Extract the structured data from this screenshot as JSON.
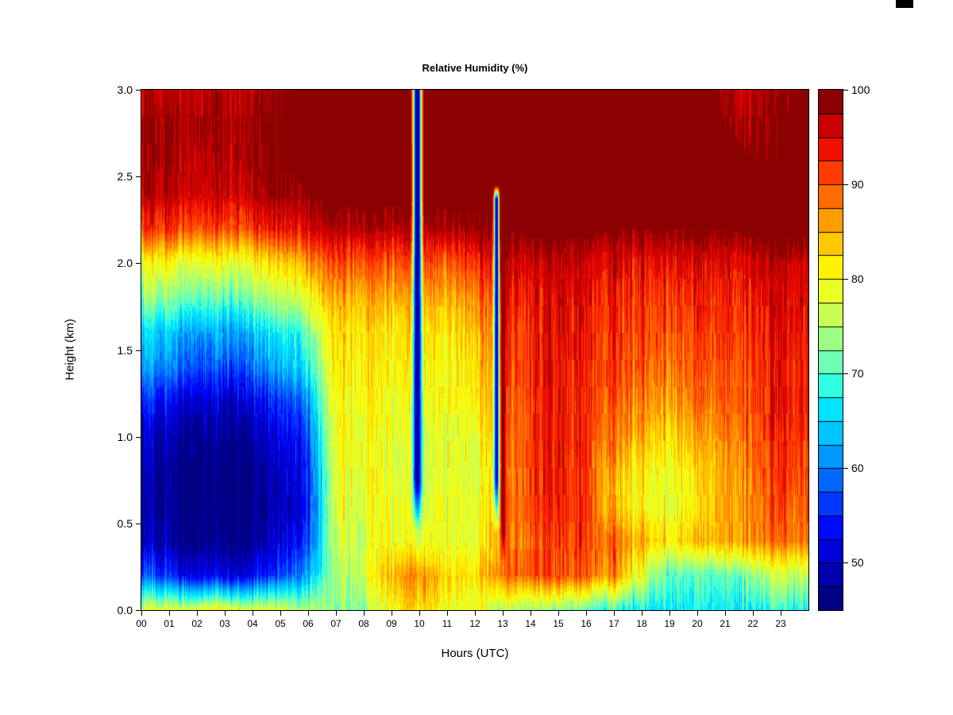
{
  "page": {
    "background": "#FFFFFF"
  },
  "decorations": {
    "corner_mark_color": "#000000"
  },
  "chart_data": {
    "type": "heatmap",
    "title": "Relative Humidity (%)",
    "xlabel": "Hours (UTC)",
    "ylabel": "Height (km)",
    "x_range": [
      0,
      24
    ],
    "y_range": [
      0,
      3
    ],
    "grid_on": false,
    "x_ticks": [
      "00",
      "01",
      "02",
      "03",
      "04",
      "05",
      "06",
      "07",
      "08",
      "09",
      "10",
      "11",
      "12",
      "13",
      "14",
      "15",
      "16",
      "17",
      "18",
      "19",
      "20",
      "21",
      "22",
      "23"
    ],
    "y_ticks": [
      "0.0",
      "0.5",
      "1.0",
      "1.5",
      "2.0",
      "2.5",
      "3.0"
    ],
    "colorbar": {
      "position": "right",
      "range": [
        45,
        100
      ],
      "ticks": [
        50,
        60,
        70,
        80,
        90,
        100
      ],
      "colors": [
        "#000082",
        "#0000AE",
        "#0000DA",
        "#0008FF",
        "#0038FF",
        "#0068FF",
        "#0098FF",
        "#00C4FF",
        "#00E4FF",
        "#30FFE4",
        "#6EFFB4",
        "#9CFF84",
        "#C8FF54",
        "#ECFF24",
        "#FFF400",
        "#FFC800",
        "#FF9C00",
        "#FF6C00",
        "#FF3C00",
        "#F01000",
        "#C80000",
        "#8B0000"
      ]
    },
    "grid": {
      "hours": [
        0,
        1,
        2,
        3,
        4,
        5,
        6,
        7,
        8,
        9,
        10,
        11,
        12,
        13,
        14,
        15,
        16,
        17,
        18,
        19,
        20,
        21,
        22,
        23,
        24
      ],
      "heights": [
        0,
        0.2,
        0.4,
        0.6,
        0.8,
        1,
        1.2,
        1.4,
        1.6,
        1.8,
        2,
        2.2,
        2.4,
        2.6,
        2.8,
        3
      ],
      "values": [
        [
          78,
          78,
          79,
          80,
          78,
          77,
          75,
          72,
          74,
          80,
          82,
          80,
          78,
          76,
          74,
          73,
          71,
          69,
          67,
          66,
          66,
          67,
          68,
          68,
          68
        ],
        [
          58,
          55,
          53,
          52,
          53,
          56,
          62,
          74,
          78,
          85,
          86,
          84,
          82,
          88,
          90,
          91,
          90,
          87,
          78,
          70,
          69,
          71,
          74,
          76,
          76
        ],
        [
          50,
          48,
          47,
          46,
          47,
          50,
          56,
          76,
          78,
          80,
          77,
          80,
          78,
          86,
          90,
          92,
          92,
          89,
          85,
          81,
          83,
          86,
          88,
          88,
          88
        ],
        [
          48,
          47,
          46,
          45,
          46,
          48,
          54,
          77,
          79,
          80,
          75,
          81,
          78,
          86,
          92,
          93,
          92,
          84,
          80,
          78,
          80,
          86,
          88,
          90,
          90
        ],
        [
          49,
          47,
          46,
          45,
          46,
          49,
          55,
          78,
          80,
          79,
          74,
          80,
          77,
          85,
          92,
          93,
          92,
          85,
          81,
          79,
          81,
          86,
          89,
          91,
          91
        ],
        [
          51,
          49,
          48,
          47,
          48,
          51,
          57,
          79,
          80,
          79,
          75,
          80,
          78,
          86,
          92,
          94,
          93,
          88,
          85,
          82,
          84,
          88,
          90,
          92,
          92
        ],
        [
          55,
          53,
          51,
          50,
          52,
          55,
          61,
          80,
          81,
          80,
          77,
          81,
          80,
          88,
          92,
          94,
          93,
          90,
          88,
          86,
          87,
          90,
          91,
          93,
          93
        ],
        [
          62,
          60,
          58,
          57,
          59,
          62,
          67,
          81,
          82,
          81,
          79,
          82,
          82,
          89,
          93,
          94,
          94,
          91,
          90,
          88,
          89,
          91,
          92,
          93,
          93
        ],
        [
          66,
          64,
          63,
          62,
          64,
          66,
          71,
          82,
          83,
          82,
          81,
          83,
          84,
          90,
          93,
          95,
          94,
          92,
          91,
          90,
          90,
          92,
          93,
          94,
          94
        ],
        [
          74,
          73,
          72,
          71,
          73,
          75,
          79,
          85,
          86,
          85,
          84,
          86,
          87,
          92,
          94,
          95,
          95,
          93,
          92,
          91,
          92,
          93,
          94,
          95,
          95
        ],
        [
          80,
          80,
          79,
          79,
          80,
          82,
          86,
          90,
          91,
          90,
          89,
          91,
          92,
          95,
          96,
          97,
          96,
          95,
          94,
          94,
          94,
          95,
          96,
          96,
          96
        ],
        [
          92,
          92,
          91,
          91,
          92,
          93,
          95,
          97,
          98,
          97,
          97,
          98,
          98,
          99,
          100,
          100,
          100,
          99,
          99,
          99,
          99,
          99,
          100,
          100,
          100
        ],
        [
          97,
          97,
          96,
          96,
          97,
          98,
          99,
          100,
          100,
          100,
          100,
          100,
          100,
          100,
          100,
          100,
          100,
          100,
          100,
          100,
          100,
          100,
          100,
          100,
          100
        ],
        [
          98,
          98,
          97,
          97,
          98,
          99,
          100,
          100,
          100,
          100,
          100,
          100,
          100,
          100,
          100,
          100,
          100,
          100,
          100,
          100,
          100,
          100,
          99,
          99,
          100
        ],
        [
          98,
          98,
          98,
          98,
          98,
          99,
          100,
          100,
          100,
          100,
          100,
          100,
          100,
          100,
          100,
          100,
          100,
          100,
          100,
          100,
          100,
          99,
          98,
          99,
          100
        ],
        [
          97,
          97,
          97,
          97,
          97,
          98,
          100,
          100,
          100,
          100,
          100,
          100,
          100,
          100,
          100,
          100,
          100,
          100,
          100,
          100,
          100,
          98,
          97,
          98,
          100
        ]
      ]
    },
    "features": {
      "dry_streaks": [
        {
          "hour": 9.93,
          "sigma": 0.1,
          "top": 3.0,
          "bottom": 0.45,
          "rh": 48
        },
        {
          "hour": 12.78,
          "sigma": 0.06,
          "top": 2.45,
          "bottom": 0.45,
          "rh": 52
        }
      ],
      "moist_streaks": [
        {
          "hour": 13.02,
          "sigma": 0.07,
          "top": 3.0,
          "bottom": 0.25,
          "rh": 100
        }
      ]
    }
  }
}
